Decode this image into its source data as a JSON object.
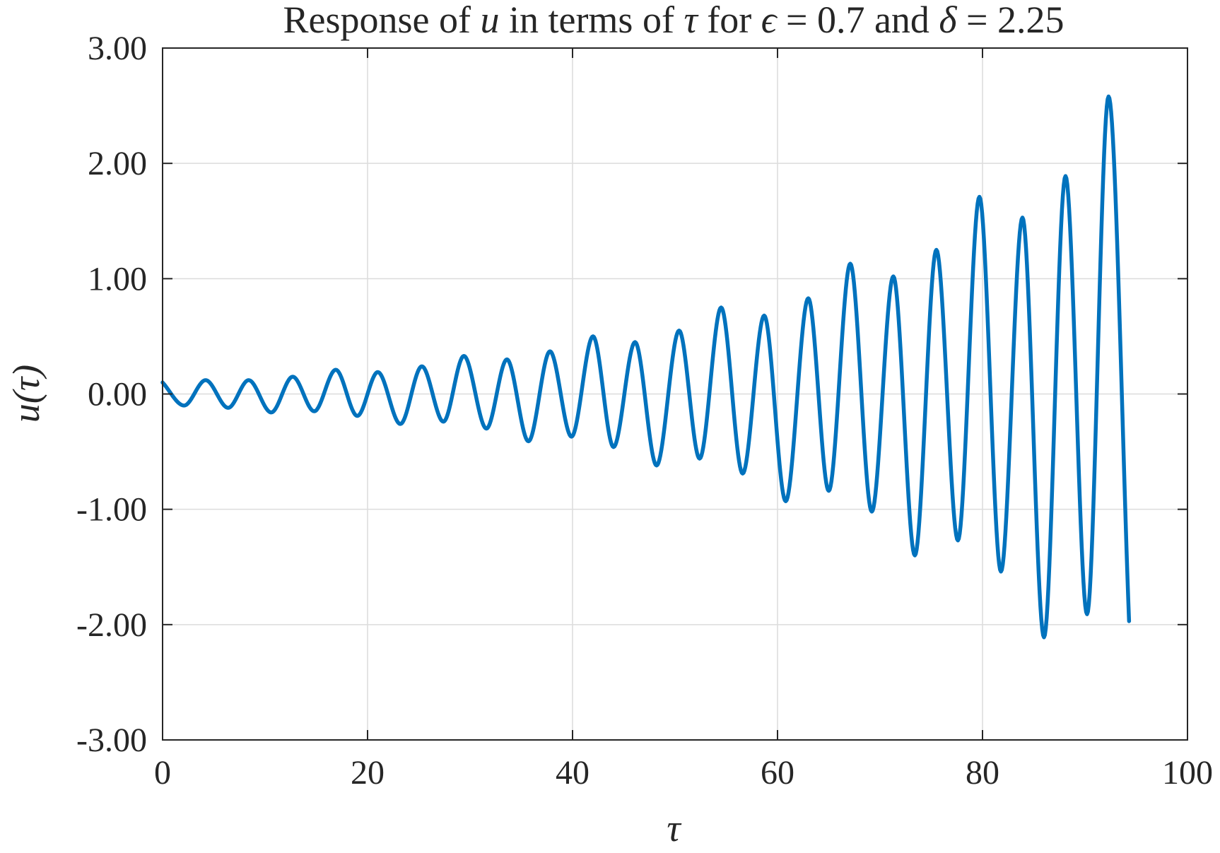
{
  "chart_data": {
    "type": "line",
    "title": {
      "p1": "Response of ",
      "p2": "u",
      "p3": " in terms of ",
      "p4": "τ",
      "p5": " for ",
      "p6": "ϵ",
      "p7": " = 0.7 and ",
      "p8": "δ",
      "p9": " = 2.25"
    },
    "xlabel": "τ",
    "ylabel": "u(τ)",
    "xlim": [
      0,
      100
    ],
    "ylim": [
      -3,
      3
    ],
    "xticks": [
      0,
      20,
      40,
      60,
      80,
      100
    ],
    "xtick_labels": [
      "0",
      "20",
      "40",
      "60",
      "80",
      "100"
    ],
    "yticks": [
      3,
      2,
      1,
      0,
      -1,
      -2,
      -3
    ],
    "ytick_labels": [
      "3.00",
      "2.00",
      "1.00",
      "0.00",
      "-1.00",
      "-2.00",
      "-3.00"
    ],
    "grid": true,
    "line_color": "#0072bd",
    "series": [
      {
        "x": [
          0,
          2.1,
          4.2,
          6.4,
          8.4,
          10.6,
          12.7,
          14.8,
          16.9,
          19.0,
          21.0,
          23.2,
          25.3,
          27.4,
          29.4,
          31.6,
          33.6,
          35.7,
          37.8,
          39.9,
          42.0,
          44.0,
          46.1,
          48.2,
          50.4,
          52.4,
          54.5,
          56.6,
          58.7,
          60.8,
          63.0,
          65.0,
          67.1,
          69.2,
          71.3,
          73.4,
          75.5,
          77.6,
          79.7,
          81.8,
          83.9,
          86.0,
          88.1,
          90.2,
          92.3,
          94.3
        ],
        "y": [
          0.1,
          -0.1,
          0.12,
          -0.12,
          0.12,
          -0.16,
          0.15,
          -0.15,
          0.21,
          -0.19,
          0.19,
          -0.26,
          0.24,
          -0.24,
          0.33,
          -0.3,
          0.3,
          -0.41,
          0.37,
          -0.37,
          0.5,
          -0.46,
          0.45,
          -0.62,
          0.55,
          -0.56,
          0.75,
          -0.69,
          0.68,
          -0.93,
          0.83,
          -0.84,
          1.13,
          -1.02,
          1.02,
          -1.4,
          1.25,
          -1.27,
          1.71,
          -1.54,
          1.53,
          -2.11,
          1.89,
          -1.91,
          2.58,
          -1.97
        ]
      }
    ]
  }
}
